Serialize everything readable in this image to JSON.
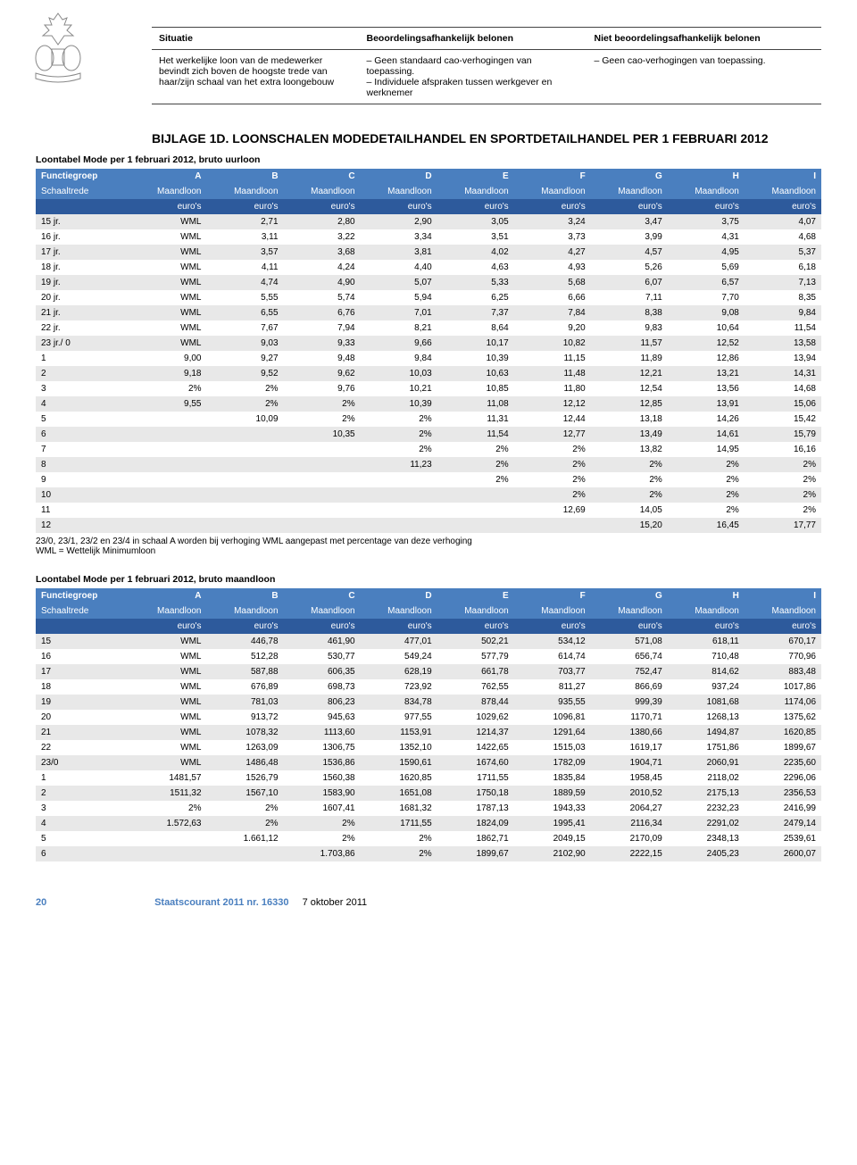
{
  "situatie": {
    "headers": [
      "Situatie",
      "Beoordelingsafhankelijk belonen",
      "Niet beoordelingsafhankelijk belonen"
    ],
    "row": {
      "col1": "Het werkelijke loon van de medewerker bevindt zich boven de hoogste trede van haar/zijn schaal van het extra loongebouw",
      "col2a": "– Geen standaard cao-verhogingen van toepassing.",
      "col2b": "– Individuele afspraken tussen werkgever en werknemer",
      "col3": "– Geen cao-verhogingen van toepassing."
    }
  },
  "bijlage_title": "BIJLAGE 1D. LOONSCHALEN MODEDETAILHANDEL EN SPORTDETAILHANDEL PER 1 FEBRUARI 2012",
  "table1": {
    "subtitle": "Loontabel Mode per 1 februari 2012, bruto uurloon",
    "hdr1": [
      "Functiegroep",
      "A",
      "B",
      "C",
      "D",
      "E",
      "F",
      "G",
      "H",
      "I"
    ],
    "hdr2_label": "Schaaltrede",
    "hdr2_val": "Maandloon",
    "hdr3_val": "euro's",
    "rows": [
      [
        "15 jr.",
        "WML",
        "2,71",
        "2,80",
        "2,90",
        "3,05",
        "3,24",
        "3,47",
        "3,75",
        "4,07"
      ],
      [
        "16 jr.",
        "WML",
        "3,11",
        "3,22",
        "3,34",
        "3,51",
        "3,73",
        "3,99",
        "4,31",
        "4,68"
      ],
      [
        "17 jr.",
        "WML",
        "3,57",
        "3,68",
        "3,81",
        "4,02",
        "4,27",
        "4,57",
        "4,95",
        "5,37"
      ],
      [
        "18 jr.",
        "WML",
        "4,11",
        "4,24",
        "4,40",
        "4,63",
        "4,93",
        "5,26",
        "5,69",
        "6,18"
      ],
      [
        "19 jr.",
        "WML",
        "4,74",
        "4,90",
        "5,07",
        "5,33",
        "5,68",
        "6,07",
        "6,57",
        "7,13"
      ],
      [
        "20 jr.",
        "WML",
        "5,55",
        "5,74",
        "5,94",
        "6,25",
        "6,66",
        "7,11",
        "7,70",
        "8,35"
      ],
      [
        "21 jr.",
        "WML",
        "6,55",
        "6,76",
        "7,01",
        "7,37",
        "7,84",
        "8,38",
        "9,08",
        "9,84"
      ],
      [
        "22 jr.",
        "WML",
        "7,67",
        "7,94",
        "8,21",
        "8,64",
        "9,20",
        "9,83",
        "10,64",
        "11,54"
      ],
      [
        "23 jr./ 0",
        "WML",
        "9,03",
        "9,33",
        "9,66",
        "10,17",
        "10,82",
        "11,57",
        "12,52",
        "13,58"
      ],
      [
        "1",
        "9,00",
        "9,27",
        "9,48",
        "9,84",
        "10,39",
        "11,15",
        "11,89",
        "12,86",
        "13,94"
      ],
      [
        "2",
        "9,18",
        "9,52",
        "9,62",
        "10,03",
        "10,63",
        "11,48",
        "12,21",
        "13,21",
        "14,31"
      ],
      [
        "3",
        "2%",
        "2%",
        "9,76",
        "10,21",
        "10,85",
        "11,80",
        "12,54",
        "13,56",
        "14,68"
      ],
      [
        "4",
        "9,55",
        "2%",
        "2%",
        "10,39",
        "11,08",
        "12,12",
        "12,85",
        "13,91",
        "15,06"
      ],
      [
        "5",
        "",
        "10,09",
        "2%",
        "2%",
        "11,31",
        "12,44",
        "13,18",
        "14,26",
        "15,42"
      ],
      [
        "6",
        "",
        "",
        "10,35",
        "2%",
        "11,54",
        "12,77",
        "13,49",
        "14,61",
        "15,79"
      ],
      [
        "7",
        "",
        "",
        "",
        "2%",
        "2%",
        "2%",
        "13,82",
        "14,95",
        "16,16"
      ],
      [
        "8",
        "",
        "",
        "",
        "11,23",
        "2%",
        "2%",
        "2%",
        "2%",
        "2%"
      ],
      [
        "9",
        "",
        "",
        "",
        "",
        "2%",
        "2%",
        "2%",
        "2%",
        "2%"
      ],
      [
        "10",
        "",
        "",
        "",
        "",
        "",
        "2%",
        "2%",
        "2%",
        "2%"
      ],
      [
        "11",
        "",
        "",
        "",
        "",
        "",
        "12,69",
        "14,05",
        "2%",
        "2%"
      ],
      [
        "12",
        "",
        "",
        "",
        "",
        "",
        "",
        "15,20",
        "16,45",
        "17,77"
      ]
    ],
    "footnote1": "23/0, 23/1, 23/2 en 23/4 in schaal A worden bij verhoging WML aangepast met percentage van deze verhoging",
    "footnote2": "WML = Wettelijk Minimumloon"
  },
  "table2": {
    "subtitle": "Loontabel Mode per 1 februari 2012, bruto maandloon",
    "rows": [
      [
        "15",
        "WML",
        "446,78",
        "461,90",
        "477,01",
        "502,21",
        "534,12",
        "571,08",
        "618,11",
        "670,17"
      ],
      [
        "16",
        "WML",
        "512,28",
        "530,77",
        "549,24",
        "577,79",
        "614,74",
        "656,74",
        "710,48",
        "770,96"
      ],
      [
        "17",
        "WML",
        "587,88",
        "606,35",
        "628,19",
        "661,78",
        "703,77",
        "752,47",
        "814,62",
        "883,48"
      ],
      [
        "18",
        "WML",
        "676,89",
        "698,73",
        "723,92",
        "762,55",
        "811,27",
        "866,69",
        "937,24",
        "1017,86"
      ],
      [
        "19",
        "WML",
        "781,03",
        "806,23",
        "834,78",
        "878,44",
        "935,55",
        "999,39",
        "1081,68",
        "1174,06"
      ],
      [
        "20",
        "WML",
        "913,72",
        "945,63",
        "977,55",
        "1029,62",
        "1096,81",
        "1170,71",
        "1268,13",
        "1375,62"
      ],
      [
        "21",
        "WML",
        "1078,32",
        "1113,60",
        "1153,91",
        "1214,37",
        "1291,64",
        "1380,66",
        "1494,87",
        "1620,85"
      ],
      [
        "22",
        "WML",
        "1263,09",
        "1306,75",
        "1352,10",
        "1422,65",
        "1515,03",
        "1619,17",
        "1751,86",
        "1899,67"
      ],
      [
        "23/0",
        "WML",
        "1486,48",
        "1536,86",
        "1590,61",
        "1674,60",
        "1782,09",
        "1904,71",
        "2060,91",
        "2235,60"
      ],
      [
        "1",
        "1481,57",
        "1526,79",
        "1560,38",
        "1620,85",
        "1711,55",
        "1835,84",
        "1958,45",
        "2118,02",
        "2296,06"
      ],
      [
        "2",
        "1511,32",
        "1567,10",
        "1583,90",
        "1651,08",
        "1750,18",
        "1889,59",
        "2010,52",
        "2175,13",
        "2356,53"
      ],
      [
        "3",
        "2%",
        "2%",
        "1607,41",
        "1681,32",
        "1787,13",
        "1943,33",
        "2064,27",
        "2232,23",
        "2416,99"
      ],
      [
        "4",
        "1.572,63",
        "2%",
        "2%",
        "1711,55",
        "1824,09",
        "1995,41",
        "2116,34",
        "2291,02",
        "2479,14"
      ],
      [
        "5",
        "",
        "1.661,12",
        "2%",
        "2%",
        "1862,71",
        "2049,15",
        "2170,09",
        "2348,13",
        "2539,61"
      ],
      [
        "6",
        "",
        "",
        "1.703,86",
        "2%",
        "1899,67",
        "2102,90",
        "2222,15",
        "2405,23",
        "2600,07"
      ]
    ]
  },
  "footer": {
    "page": "20",
    "source": "Staatscourant 2011 nr. 16330",
    "date": "7 oktober 2011"
  }
}
